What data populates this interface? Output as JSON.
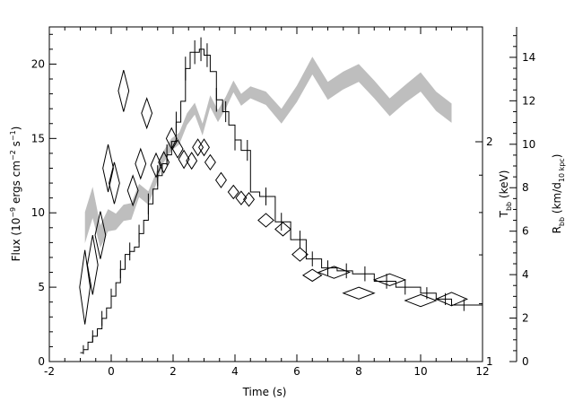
{
  "chart_data": {
    "type": "scatter",
    "title": "",
    "xlabel": "Time (s)",
    "ylabel_left": {
      "pre": "Flux (10",
      "exp1": "−9",
      "mid": " ergs cm",
      "exp2": "−2",
      "mid2": " s",
      "exp3": "−1",
      "post": ")"
    },
    "ylabel_tbb": {
      "pre": "T",
      "sub": "bb",
      "post": " (keV)"
    },
    "ylabel_rbb": {
      "pre": "R",
      "sub": "bb",
      "mid": " (km/d",
      "sub2": "10 kpc",
      "post": ")"
    },
    "xlim": [
      -2,
      12
    ],
    "ylim_flux": [
      0,
      22.5
    ],
    "ylim_rbb": [
      0,
      15.4
    ],
    "tbb_ticks": [
      1,
      2
    ],
    "x_ticks": [
      -2,
      0,
      2,
      4,
      6,
      8,
      10,
      12
    ],
    "y_ticks_flux": [
      0,
      5,
      10,
      15,
      20
    ],
    "y_ticks_rbb": [
      0,
      2,
      4,
      6,
      8,
      10,
      12,
      14
    ],
    "series": [
      {
        "kind": "flux_histogram",
        "color": "#000000",
        "steps": [
          [
            -1.0,
            -0.9,
            0.6
          ],
          [
            -0.9,
            -0.75,
            0.8
          ],
          [
            -0.75,
            -0.6,
            1.3
          ],
          [
            -0.6,
            -0.45,
            1.7
          ],
          [
            -0.45,
            -0.3,
            2.2
          ],
          [
            -0.3,
            -0.15,
            2.9
          ],
          [
            -0.15,
            0.0,
            3.6
          ],
          [
            0.0,
            0.15,
            4.4
          ],
          [
            0.15,
            0.3,
            5.3
          ],
          [
            0.3,
            0.45,
            6.2
          ],
          [
            0.45,
            0.6,
            7.2
          ],
          [
            0.6,
            0.75,
            7.4
          ],
          [
            0.75,
            0.9,
            7.7
          ],
          [
            0.9,
            1.05,
            8.6
          ],
          [
            1.05,
            1.2,
            9.5
          ],
          [
            1.2,
            1.35,
            10.6
          ],
          [
            1.35,
            1.5,
            11.6
          ],
          [
            1.5,
            1.65,
            12.5
          ],
          [
            1.65,
            1.8,
            13.3
          ],
          [
            1.8,
            1.95,
            13.9
          ],
          [
            1.95,
            2.1,
            14.8
          ],
          [
            2.1,
            2.25,
            16.1
          ],
          [
            2.25,
            2.4,
            17.5
          ],
          [
            2.4,
            2.55,
            19.7
          ],
          [
            2.55,
            2.85,
            20.8
          ],
          [
            2.85,
            3.0,
            21.0
          ],
          [
            3.0,
            3.2,
            20.6
          ],
          [
            3.2,
            3.4,
            19.5
          ],
          [
            3.4,
            3.6,
            17.6
          ],
          [
            3.6,
            3.8,
            16.8
          ],
          [
            3.8,
            4.0,
            15.9
          ],
          [
            4.0,
            4.2,
            14.9
          ],
          [
            4.2,
            4.5,
            14.2
          ],
          [
            4.5,
            4.8,
            11.4
          ],
          [
            4.8,
            5.3,
            11.1
          ],
          [
            5.3,
            5.8,
            9.4
          ],
          [
            5.8,
            6.3,
            8.2
          ],
          [
            6.3,
            6.8,
            6.9
          ],
          [
            6.8,
            7.3,
            6.3
          ],
          [
            7.3,
            7.8,
            6.1
          ],
          [
            7.8,
            8.5,
            5.9
          ],
          [
            8.5,
            9.2,
            5.4
          ],
          [
            9.2,
            10.0,
            5.0
          ],
          [
            10.0,
            10.5,
            4.6
          ],
          [
            10.5,
            11.0,
            4.2
          ],
          [
            11.0,
            12.0,
            3.8
          ]
        ],
        "error_bars": [
          [
            -0.9,
            0.8,
            0.3
          ],
          [
            -0.6,
            1.7,
            0.4
          ],
          [
            -0.3,
            2.9,
            0.5
          ],
          [
            0.0,
            4.4,
            0.5
          ],
          [
            0.3,
            6.2,
            0.6
          ],
          [
            0.6,
            7.4,
            0.6
          ],
          [
            0.9,
            8.6,
            0.6
          ],
          [
            1.2,
            10.6,
            0.7
          ],
          [
            1.5,
            12.5,
            0.7
          ],
          [
            1.8,
            13.9,
            0.7
          ],
          [
            2.1,
            16.1,
            0.7
          ],
          [
            2.4,
            19.7,
            0.8
          ],
          [
            2.7,
            20.8,
            0.8
          ],
          [
            2.9,
            21.0,
            0.8
          ],
          [
            3.1,
            20.6,
            0.8
          ],
          [
            3.4,
            17.6,
            0.8
          ],
          [
            3.7,
            16.8,
            0.7
          ],
          [
            4.0,
            14.9,
            0.7
          ],
          [
            4.4,
            14.2,
            0.7
          ],
          [
            5.0,
            11.1,
            0.6
          ],
          [
            5.5,
            9.4,
            0.6
          ],
          [
            6.1,
            8.2,
            0.6
          ],
          [
            6.5,
            6.9,
            0.5
          ],
          [
            7.0,
            6.3,
            0.5
          ],
          [
            7.6,
            6.1,
            0.5
          ],
          [
            8.2,
            5.9,
            0.5
          ],
          [
            8.9,
            5.4,
            0.5
          ],
          [
            9.5,
            5.0,
            0.5
          ],
          [
            10.2,
            4.6,
            0.4
          ],
          [
            10.8,
            4.2,
            0.4
          ],
          [
            11.4,
            3.8,
            0.4
          ]
        ]
      },
      {
        "kind": "tbb_diamonds",
        "color": "#000000",
        "note_axis": "plotted in flux-axis units",
        "points": [
          [
            -0.85,
            5.0,
            0.17,
            2.5
          ],
          [
            -0.6,
            6.5,
            0.17,
            2.0
          ],
          [
            -0.35,
            8.5,
            0.17,
            1.6
          ],
          [
            -0.1,
            13.0,
            0.17,
            1.6
          ],
          [
            0.1,
            12.0,
            0.17,
            1.4
          ],
          [
            0.4,
            18.2,
            0.17,
            1.4
          ],
          [
            0.7,
            11.5,
            0.17,
            1.0
          ],
          [
            0.95,
            13.3,
            0.17,
            1.0
          ],
          [
            1.15,
            16.7,
            0.17,
            1.0
          ],
          [
            1.45,
            13.2,
            0.17,
            0.8
          ],
          [
            1.7,
            13.4,
            0.17,
            0.7
          ],
          [
            1.95,
            15.0,
            0.17,
            0.7
          ],
          [
            2.15,
            14.3,
            0.17,
            0.6
          ],
          [
            2.35,
            13.6,
            0.17,
            0.6
          ],
          [
            2.6,
            13.5,
            0.17,
            0.55
          ],
          [
            2.8,
            14.4,
            0.17,
            0.55
          ],
          [
            3.0,
            14.4,
            0.17,
            0.55
          ],
          [
            3.2,
            13.4,
            0.17,
            0.5
          ],
          [
            3.55,
            12.2,
            0.17,
            0.5
          ],
          [
            3.95,
            11.4,
            0.17,
            0.45
          ],
          [
            4.2,
            11.0,
            0.17,
            0.45
          ],
          [
            4.45,
            10.9,
            0.17,
            0.45
          ],
          [
            5.0,
            9.5,
            0.25,
            0.45
          ],
          [
            5.55,
            8.9,
            0.25,
            0.45
          ],
          [
            6.1,
            7.2,
            0.25,
            0.45
          ],
          [
            6.5,
            5.8,
            0.3,
            0.4
          ],
          [
            7.2,
            6.0,
            0.5,
            0.4
          ],
          [
            8.0,
            4.6,
            0.5,
            0.4
          ],
          [
            9.0,
            5.5,
            0.5,
            0.4
          ],
          [
            10.0,
            4.1,
            0.5,
            0.4
          ],
          [
            11.0,
            4.2,
            0.5,
            0.45
          ]
        ]
      },
      {
        "kind": "rbb_band",
        "color": "#bebebe",
        "note_axis": "plotted in flux-axis units",
        "points": [
          [
            -0.85,
            9.0,
            2.1
          ],
          [
            -0.6,
            10.7,
            2.1
          ],
          [
            -0.35,
            8.4,
            1.5
          ],
          [
            -0.1,
            9.5,
            1.5
          ],
          [
            0.15,
            9.4,
            1.1
          ],
          [
            0.4,
            10.0,
            1.1
          ],
          [
            0.65,
            10.1,
            1.1
          ],
          [
            0.9,
            11.5,
            0.9
          ],
          [
            1.2,
            11.0,
            0.9
          ],
          [
            1.45,
            12.3,
            0.8
          ],
          [
            1.7,
            13.8,
            0.8
          ],
          [
            1.95,
            14.6,
            0.8
          ],
          [
            2.2,
            15.0,
            0.8
          ],
          [
            2.45,
            16.3,
            0.8
          ],
          [
            2.7,
            17.0,
            0.8
          ],
          [
            2.95,
            15.6,
            0.8
          ],
          [
            3.2,
            17.5,
            0.8
          ],
          [
            3.45,
            16.5,
            0.8
          ],
          [
            3.7,
            17.4,
            0.8
          ],
          [
            3.95,
            18.5,
            0.8
          ],
          [
            4.2,
            17.6,
            0.8
          ],
          [
            4.5,
            18.1,
            0.8
          ],
          [
            5.0,
            17.7,
            0.9
          ],
          [
            5.5,
            16.5,
            1.0
          ],
          [
            6.0,
            18.0,
            1.1
          ],
          [
            6.5,
            19.9,
            1.2
          ],
          [
            7.0,
            18.2,
            1.2
          ],
          [
            7.5,
            18.9,
            1.2
          ],
          [
            8.0,
            19.4,
            1.2
          ],
          [
            8.5,
            18.3,
            1.2
          ],
          [
            9.0,
            17.1,
            1.2
          ],
          [
            9.5,
            18.0,
            1.2
          ],
          [
            10.0,
            18.8,
            1.3
          ],
          [
            10.5,
            17.5,
            1.3
          ],
          [
            11.0,
            16.7,
            1.3
          ]
        ]
      }
    ]
  }
}
